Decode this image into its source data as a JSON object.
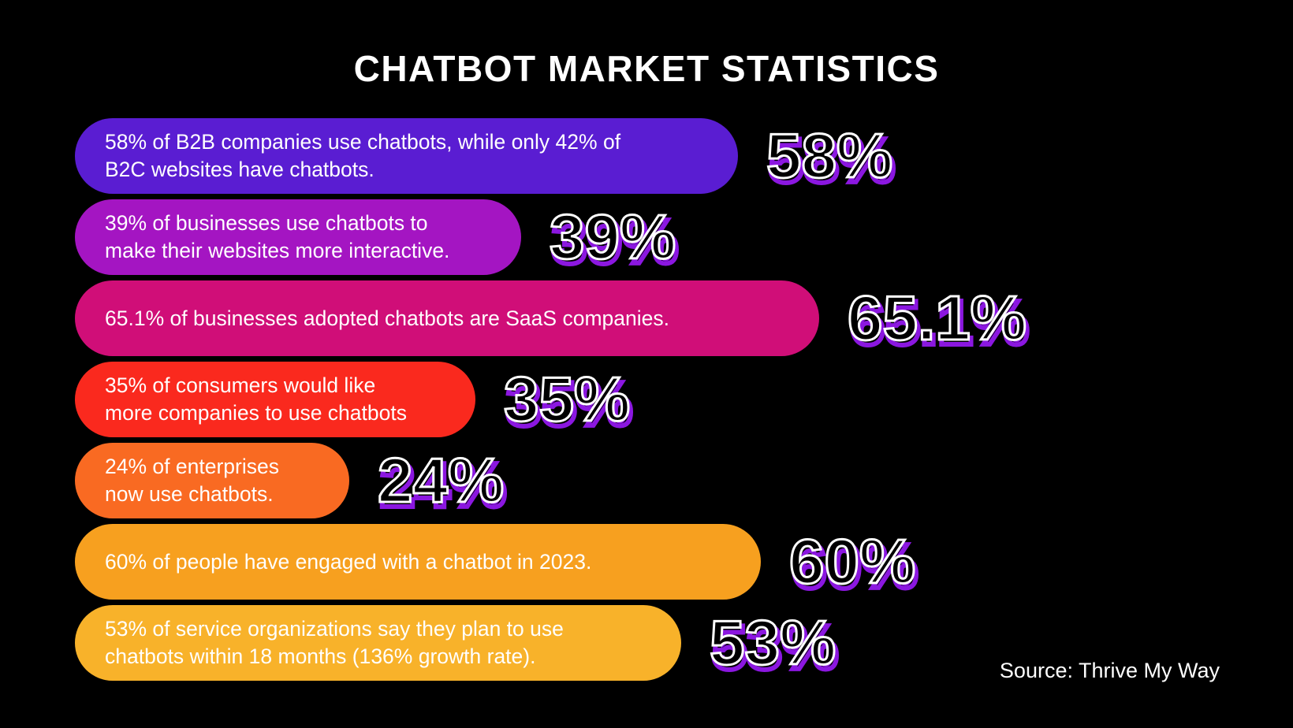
{
  "title": "CHATBOT MARKET STATISTICS",
  "source_text": "Source: Thrive My Way",
  "background_color": "#000000",
  "accent_color": "#8b17e0",
  "text_color": "#ffffff",
  "chart_data": {
    "type": "bar",
    "orientation": "horizontal",
    "title": "CHATBOT MARKET STATISTICS",
    "unit": "percent",
    "grid": false,
    "legend": false,
    "source": "Thrive My Way",
    "categories": [
      "B2B companies that use chatbots (vs 42% of B2C websites)",
      "Businesses that use chatbots to make their websites more interactive",
      "Businesses adopted chatbots that are SaaS companies",
      "Consumers who would like more companies to use chatbots",
      "Enterprises that now use chatbots",
      "People who have engaged with a chatbot in 2023",
      "Service organizations that plan to use chatbots within 18 months (136% growth rate)"
    ],
    "values": [
      58,
      39,
      65.1,
      35,
      24,
      60,
      53
    ],
    "bar_colors": [
      "#5a1dd2",
      "#a415c2",
      "#d00e78",
      "#fa291e",
      "#f96a22",
      "#f7a01f",
      "#f8b22a"
    ]
  },
  "stats": [
    {
      "percent": 58,
      "value_label": "58%",
      "text": "58% of B2B companies use chatbots, while only 42% of\nB2C websites have chatbots.",
      "color": "#5a1dd2"
    },
    {
      "percent": 39,
      "value_label": "39%",
      "text": "39% of businesses use chatbots to\nmake their websites more interactive.",
      "color": "#a415c2"
    },
    {
      "percent": 65.1,
      "value_label": "65.1%",
      "text": "65.1% of businesses adopted chatbots are SaaS companies.",
      "color": "#d00e78"
    },
    {
      "percent": 35,
      "value_label": "35%",
      "text": "35% of consumers would like\nmore companies to use chatbots",
      "color": "#fa291e"
    },
    {
      "percent": 24,
      "value_label": "24%",
      "text": "24% of enterprises\nnow use chatbots.",
      "color": "#f96a22"
    },
    {
      "percent": 60,
      "value_label": "60%",
      "text": "60% of people have engaged with a chatbot in 2023.",
      "color": "#f7a01f"
    },
    {
      "percent": 53,
      "value_label": "53%",
      "text": "53% of service organizations say they plan to use\nchatbots within 18 months (136% growth rate).",
      "color": "#f8b22a"
    }
  ]
}
